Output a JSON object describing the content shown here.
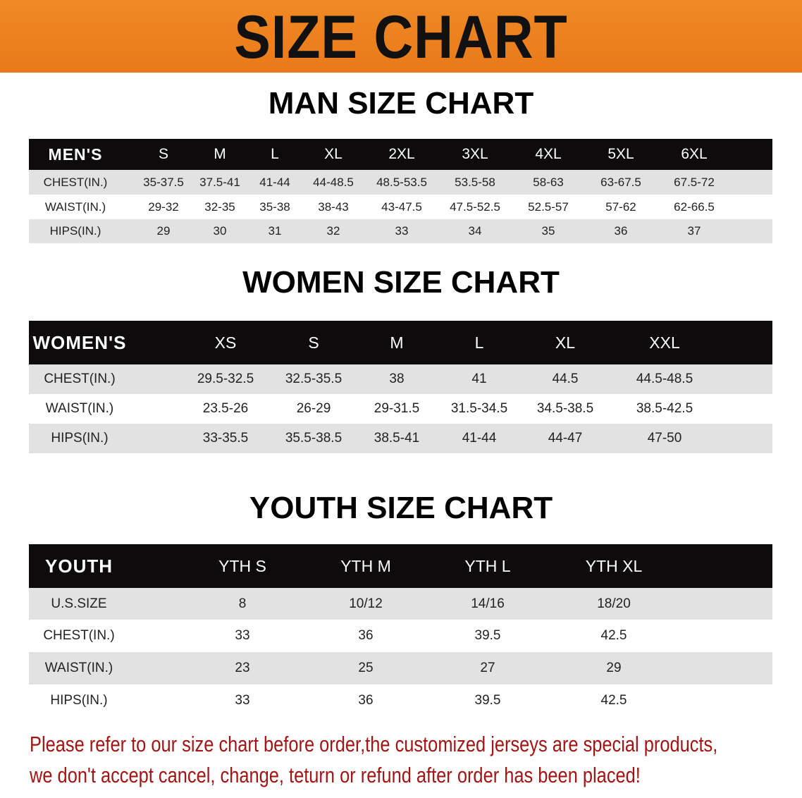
{
  "banner_title": "SIZE CHART",
  "men": {
    "title": "MAN SIZE CHART",
    "header": [
      "MEN'S",
      "S",
      "M",
      "L",
      "XL",
      "2XL",
      "3XL",
      "4XL",
      "5XL",
      "6XL"
    ],
    "rows": [
      [
        "CHEST(IN.)",
        "35-37.5",
        "37.5-41",
        "41-44",
        "44-48.5",
        "48.5-53.5",
        "53.5-58",
        "58-63",
        "63-67.5",
        "67.5-72"
      ],
      [
        "WAIST(IN.)",
        "29-32",
        "32-35",
        "35-38",
        "38-43",
        "43-47.5",
        "47.5-52.5",
        "52.5-57",
        "57-62",
        "62-66.5"
      ],
      [
        "HIPS(IN.)",
        "29",
        "30",
        "31",
        "32",
        "33",
        "34",
        "35",
        "36",
        "37"
      ]
    ]
  },
  "women": {
    "title": "WOMEN SIZE CHART",
    "header": [
      "WOMEN'S",
      "XS",
      "S",
      "M",
      "L",
      "XL",
      "XXL"
    ],
    "rows": [
      [
        "CHEST(IN.)",
        "29.5-32.5",
        "32.5-35.5",
        "38",
        "41",
        "44.5",
        "44.5-48.5"
      ],
      [
        "WAIST(IN.)",
        "23.5-26",
        "26-29",
        "29-31.5",
        "31.5-34.5",
        "34.5-38.5",
        "38.5-42.5"
      ],
      [
        "HIPS(IN.)",
        "33-35.5",
        "35.5-38.5",
        "38.5-41",
        "41-44",
        "44-47",
        "47-50"
      ]
    ]
  },
  "youth": {
    "title": "YOUTH SIZE CHART",
    "header": [
      "YOUTH",
      "YTH S",
      "YTH M",
      "YTH L",
      "YTH XL"
    ],
    "rows": [
      [
        "U.S.SIZE",
        "8",
        "10/12",
        "14/16",
        "18/20"
      ],
      [
        "CHEST(IN.)",
        "33",
        "36",
        "39.5",
        "42.5"
      ],
      [
        "WAIST(IN.)",
        "23",
        "25",
        "27",
        "29"
      ],
      [
        "HIPS(IN.)",
        "33",
        "36",
        "39.5",
        "42.5"
      ]
    ]
  },
  "notice": [
    "Please refer to our size chart before order,the customized jerseys are special products,",
    "we don't accept cancel, change, teturn or refund after order has been placed!"
  ],
  "colors": {
    "banner": "#ec8020",
    "header_row": "#0d0b0b",
    "stripe": "#e2e2e2",
    "notice": "#a31515"
  }
}
